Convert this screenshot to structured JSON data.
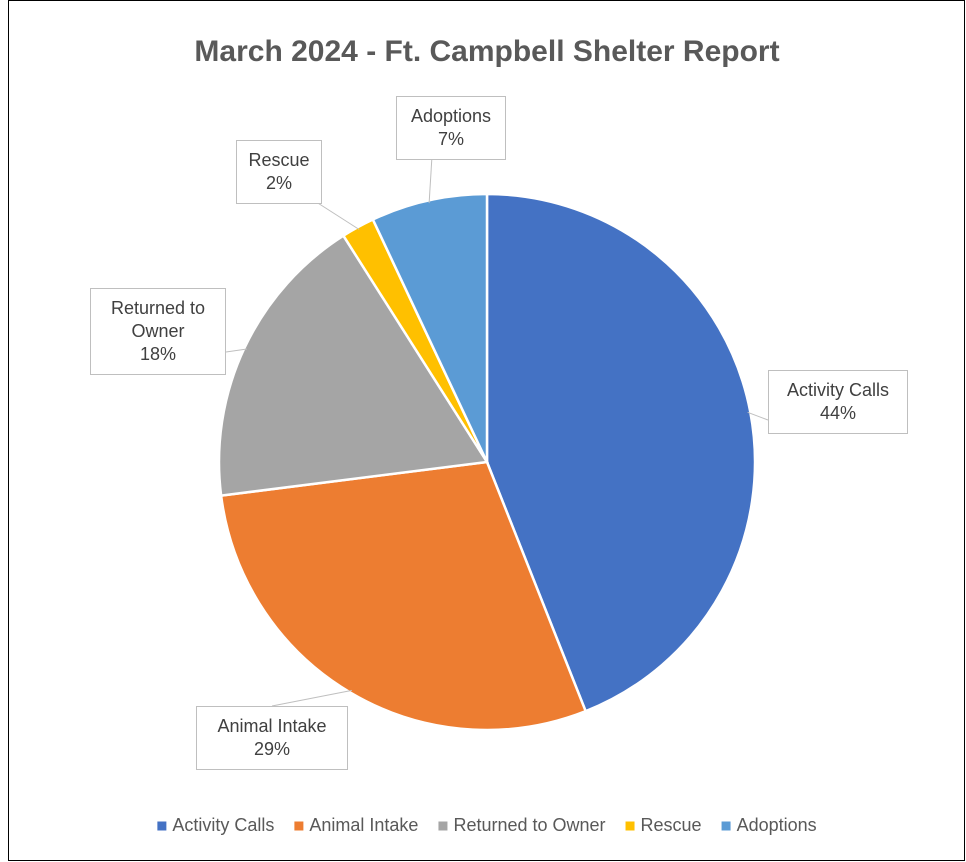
{
  "chart_data": {
    "type": "pie",
    "title": "March 2024 - Ft. Campbell Shelter Report",
    "categories": [
      "Activity Calls",
      "Animal Intake",
      "Returned to Owner",
      "Rescue",
      "Adoptions"
    ],
    "values": [
      44,
      29,
      18,
      2,
      7
    ],
    "value_labels": [
      "44%",
      "29%",
      "18%",
      "2%",
      "7%"
    ],
    "colors": [
      "#4472c4",
      "#ed7d31",
      "#a5a5a5",
      "#ffc000",
      "#5b9bd5"
    ],
    "legend": "bottom"
  }
}
